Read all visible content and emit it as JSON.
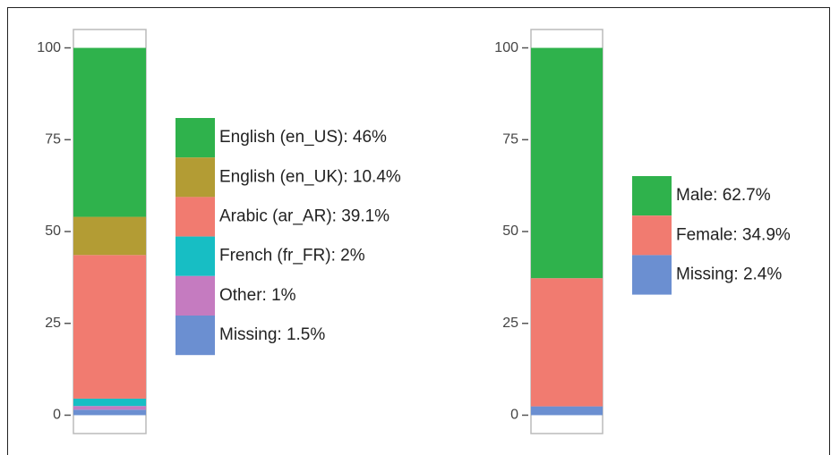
{
  "chart_data": [
    {
      "type": "stacked-bar",
      "series": [
        {
          "name": "English (en_US): 46%",
          "color": "#2fb24c",
          "values": [
            46
          ]
        },
        {
          "name": "English (en_UK): 10.4%",
          "color": "#b39c34",
          "values": [
            10.4
          ]
        },
        {
          "name": "Arabic (ar_AR): 39.1%",
          "color": "#f17b70",
          "values": [
            39.1
          ]
        },
        {
          "name": "French (fr_FR): 2%",
          "color": "#17bec4",
          "values": [
            2
          ]
        },
        {
          "name": "Other: 1%",
          "color": "#c57bc0",
          "values": [
            1
          ]
        },
        {
          "name": "Missing: 1.5%",
          "color": "#6b8fd1",
          "values": [
            1.5
          ]
        }
      ],
      "ylim": [
        -5,
        105
      ],
      "yticks": [
        0,
        25,
        50,
        75,
        100
      ]
    },
    {
      "type": "stacked-bar",
      "series": [
        {
          "name": "Male: 62.7%",
          "color": "#2fb24c",
          "values": [
            62.7
          ]
        },
        {
          "name": "Female: 34.9%",
          "color": "#f17b70",
          "values": [
            34.9
          ]
        },
        {
          "name": "Missing: 2.4%",
          "color": "#6b8fd1",
          "values": [
            2.4
          ]
        }
      ],
      "ylim": [
        -5,
        105
      ],
      "yticks": [
        0,
        25,
        50,
        75,
        100
      ]
    }
  ]
}
